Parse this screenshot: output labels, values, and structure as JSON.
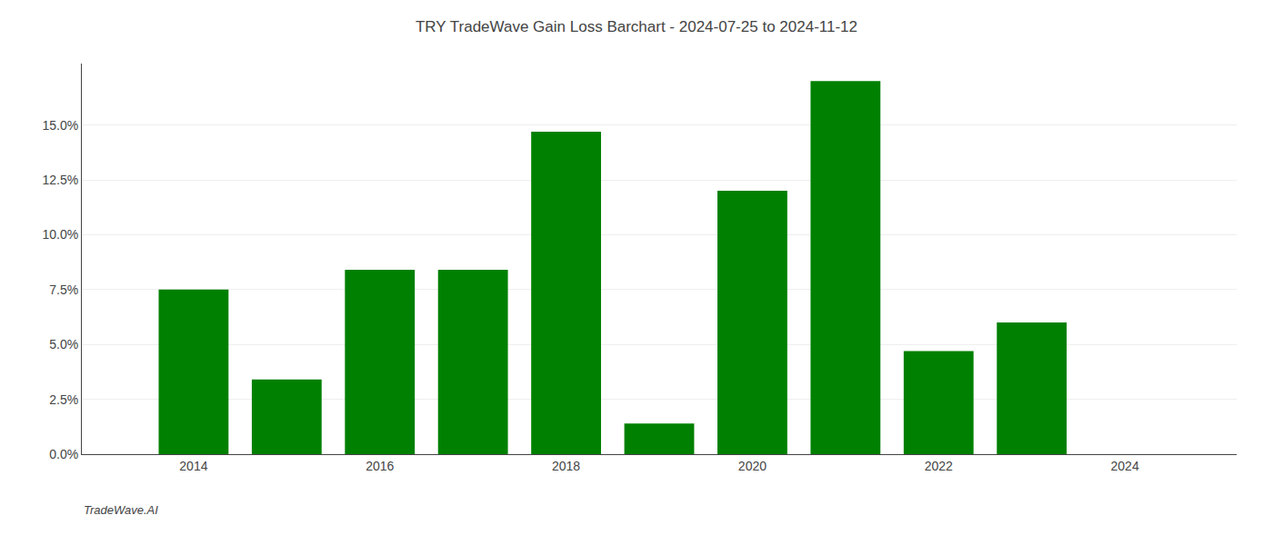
{
  "chart_data": {
    "type": "bar",
    "title": "TRY TradeWave Gain Loss Barchart - 2024-07-25 to 2024-11-12",
    "annotations": [
      "TradeWave.AI"
    ],
    "x": [
      2014,
      2015,
      2016,
      2017,
      2018,
      2019,
      2020,
      2021,
      2022,
      2023,
      2024
    ],
    "values": [
      0.075,
      0.034,
      0.084,
      0.084,
      0.147,
      0.014,
      0.12,
      0.17,
      0.047,
      0.06,
      0.0
    ],
    "color": "#008000",
    "xlim": [
      2012.8,
      2025.2
    ],
    "xticks": [
      2014,
      2016,
      2018,
      2020,
      2022,
      2024
    ],
    "ylim": [
      0,
      0.178
    ],
    "yticks": [
      {
        "value": 0.0,
        "label": "0.0%"
      },
      {
        "value": 0.025,
        "label": "2.5%"
      },
      {
        "value": 0.05,
        "label": "5.0%"
      },
      {
        "value": 0.075,
        "label": "7.5%"
      },
      {
        "value": 0.1,
        "label": "10.0%"
      },
      {
        "value": 0.125,
        "label": "12.5%"
      },
      {
        "value": 0.15,
        "label": "15.0%"
      }
    ],
    "grid": true
  }
}
